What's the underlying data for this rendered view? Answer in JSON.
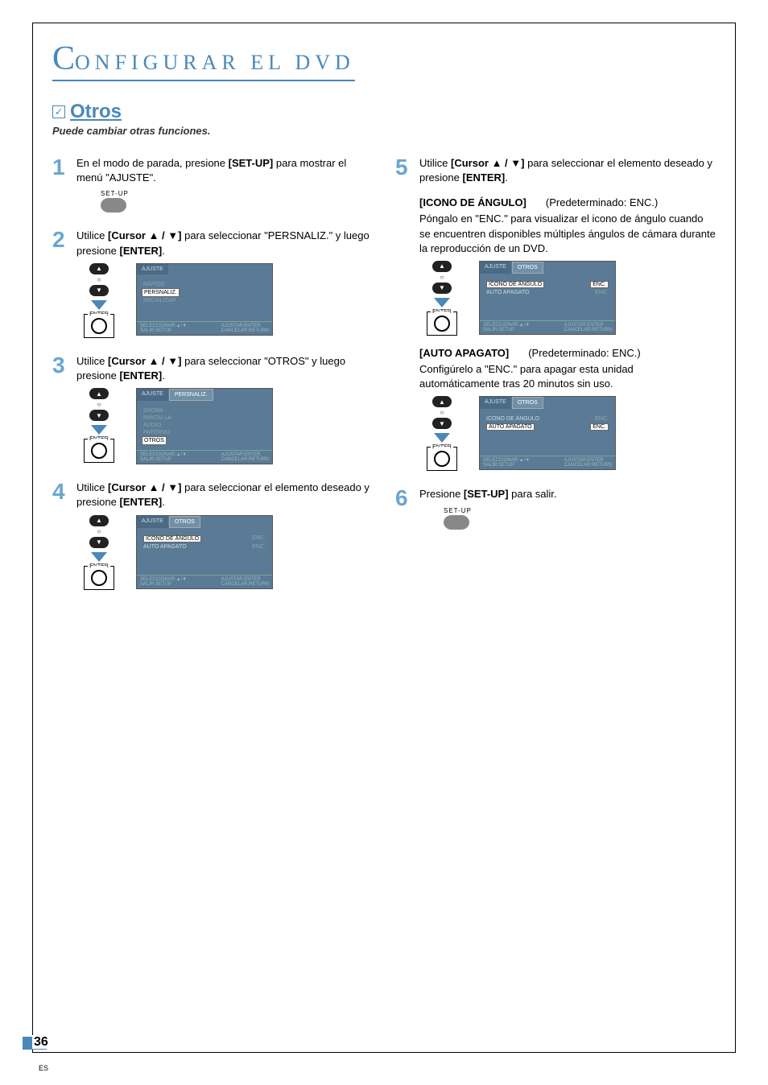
{
  "header": {
    "section_prefix_big": "C",
    "section_rest": "ONFIGURAR  EL  DVD"
  },
  "otros": {
    "title": "Otros",
    "subtitle": "Puede cambiar otras funciones."
  },
  "remote_labels": {
    "setup": "SET-UP",
    "enter": "ENTER",
    "up_glyph": "▲",
    "down_glyph": "▼",
    "ring_glyph": "○"
  },
  "osd_common": {
    "ajuste": "AJUSTE",
    "footer_left_a": "SELECCIONAR:",
    "footer_left_b": "SALIR:SETUP",
    "footer_right_a": "AJUSTAR:ENTER",
    "footer_right_b": "CANCELAR:RETURN"
  },
  "steps_left": [
    {
      "num": "1",
      "text_parts": [
        "En el modo de parada, presione ",
        "[SET-UP]",
        " para mostrar el menú \"AJUSTE\"."
      ],
      "show_setup_btn": true
    },
    {
      "num": "2",
      "text_parts": [
        "Utilice ",
        "[Cursor ▲ / ▼]",
        " para seleccionar \"PERSNALIZ.\" y luego presione ",
        "[ENTER]",
        "."
      ],
      "osd": {
        "tabs": [
          {
            "label": "AJUSTE",
            "lit": false
          }
        ],
        "items": [
          {
            "label": "RÁPIDO",
            "sel": false
          },
          {
            "label": "PERSNALIZ.",
            "sel": true
          },
          {
            "label": "INICIALIZAR",
            "sel": false
          }
        ]
      }
    },
    {
      "num": "3",
      "text_parts": [
        "Utilice ",
        "[Cursor ▲ / ▼]",
        " para seleccionar \"OTROS\" y luego presione ",
        "[ENTER]",
        "."
      ],
      "osd": {
        "tabs": [
          {
            "label": "AJUSTE",
            "lit": false
          },
          {
            "label": "PERSNALIZ.",
            "lit": true
          }
        ],
        "items": [
          {
            "label": "IDIOMA",
            "sel": false
          },
          {
            "label": "PANTALLA",
            "sel": false
          },
          {
            "label": "AUDIO",
            "sel": false
          },
          {
            "label": "PATERNO",
            "sel": false
          },
          {
            "label": "OTROS",
            "sel": true
          }
        ]
      }
    },
    {
      "num": "4",
      "text_parts": [
        "Utilice ",
        "[Cursor ▲ / ▼]",
        " para seleccionar el elemento deseado y presione ",
        "[ENTER]",
        "."
      ],
      "osd": {
        "tabs": [
          {
            "label": "AJUSTE",
            "lit": false
          },
          {
            "label": "OTROS",
            "lit": true
          }
        ],
        "rows": [
          {
            "k": "ICONO DE ÁNGULO",
            "v": "ENC.",
            "ksel": true,
            "vsel": false
          },
          {
            "k": "AUTO APAGATO",
            "v": "ENC.",
            "ksel": false,
            "vsel": false
          }
        ]
      }
    }
  ],
  "steps_right": [
    {
      "num": "5",
      "text_parts": [
        "Utilice ",
        "[Cursor ▲ / ▼]",
        " para seleccionar el elemento deseado y presione ",
        "[ENTER]",
        "."
      ],
      "settings": [
        {
          "name": "[ICONO DE ÁNGULO]",
          "default": "(Predeterminado: ENC.)",
          "desc": "Póngalo en \"ENC.\" para visualizar el icono de ángulo cuando se encuentren disponibles múltiples ángulos de cámara durante la reproducción de un DVD.",
          "osd": {
            "tabs": [
              {
                "label": "AJUSTE",
                "lit": false
              },
              {
                "label": "OTROS",
                "lit": true
              }
            ],
            "rows": [
              {
                "k": "ICONO DE ÁNGULO",
                "v": "ENC.",
                "ksel": true,
                "vsel": true
              },
              {
                "k": "AUTO APAGATO",
                "v": "ENC.",
                "ksel": false,
                "vsel": false
              }
            ]
          }
        },
        {
          "name": "[AUTO APAGATO]",
          "default": "(Predeterminado: ENC.)",
          "desc": "Configúrelo a \"ENC.\" para apagar esta unidad automáticamente tras 20 minutos sin uso.",
          "osd": {
            "tabs": [
              {
                "label": "AJUSTE",
                "lit": false
              },
              {
                "label": "OTROS",
                "lit": true
              }
            ],
            "rows": [
              {
                "k": "ICONO DE ÁNGULO",
                "v": "ENC.",
                "ksel": false,
                "vsel": false
              },
              {
                "k": "AUTO APAGATO",
                "v": "ENC.",
                "ksel": true,
                "vsel": true
              }
            ]
          }
        }
      ]
    },
    {
      "num": "6",
      "text_parts": [
        "Presione ",
        "[SET-UP]",
        " para salir."
      ],
      "show_setup_btn": true
    }
  ],
  "page": {
    "number": "36",
    "lang": "ES"
  },
  "colors": {
    "accent": "#4a88b8",
    "osd_bg": "#5a7a96",
    "step_num": "#6aa6d0"
  }
}
